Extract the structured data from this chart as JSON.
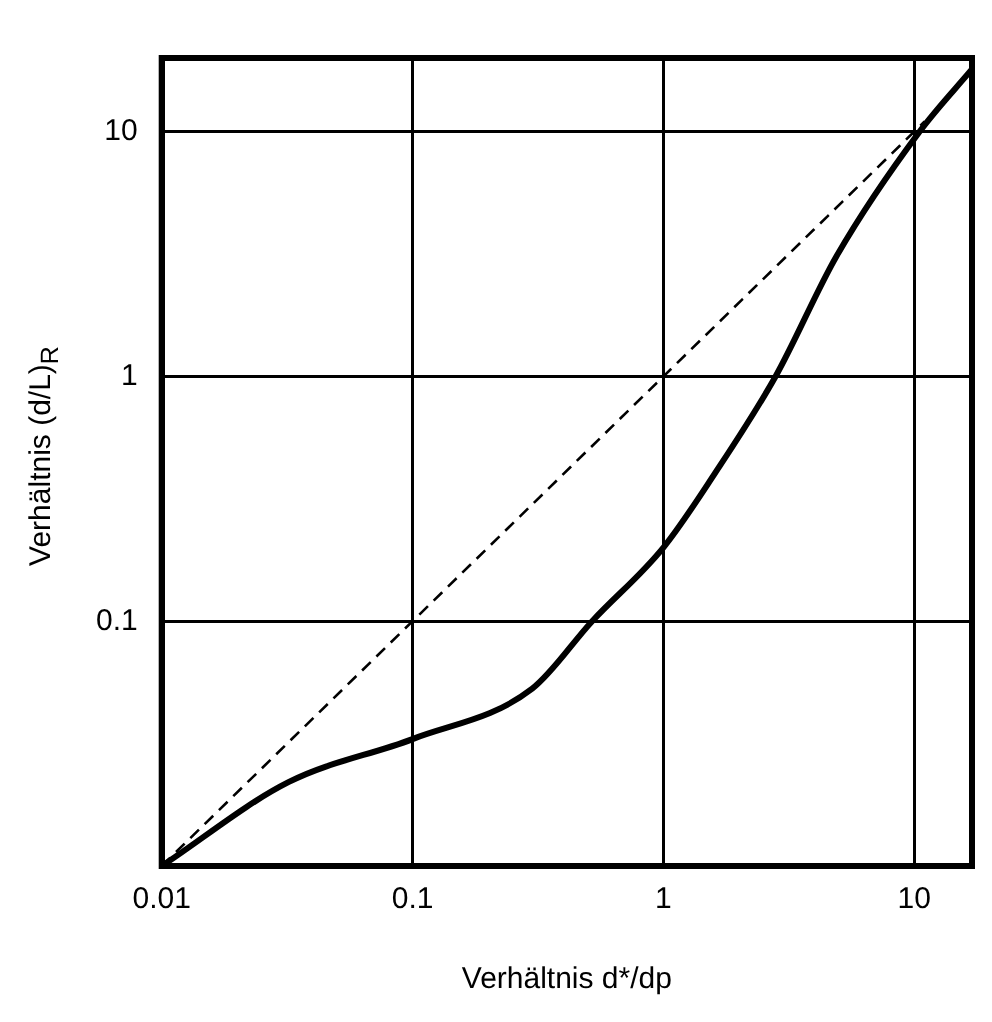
{
  "chart_data": {
    "type": "line",
    "xlabel": "Verhältnis d*/dp",
    "ylabel": "Verhältnis (d/L)$_{R}$",
    "log": "xy",
    "grid": true,
    "legend": false,
    "marker": "none",
    "xlim": [
      0.01,
      17
    ],
    "ylim": [
      0.01,
      20
    ],
    "xticks": [
      0.01,
      0.1,
      1,
      10
    ],
    "yticks": [
      0.1,
      1,
      10
    ],
    "series": [
      {
        "color": "#000000",
        "line_style": "solid",
        "x": [
          0.01,
          0.032,
          0.1,
          0.3,
          0.52,
          1,
          1.6,
          2.8,
          4.9,
          10.5,
          17
        ],
        "values": [
          0.01,
          0.022,
          0.033,
          0.053,
          0.1,
          0.2,
          0.4,
          1,
          3.1,
          10,
          18
        ]
      },
      {
        "color": "#000000",
        "line_style": "dashed",
        "x": [
          0.01,
          11
        ],
        "values": [
          0.01,
          11
        ]
      }
    ]
  }
}
